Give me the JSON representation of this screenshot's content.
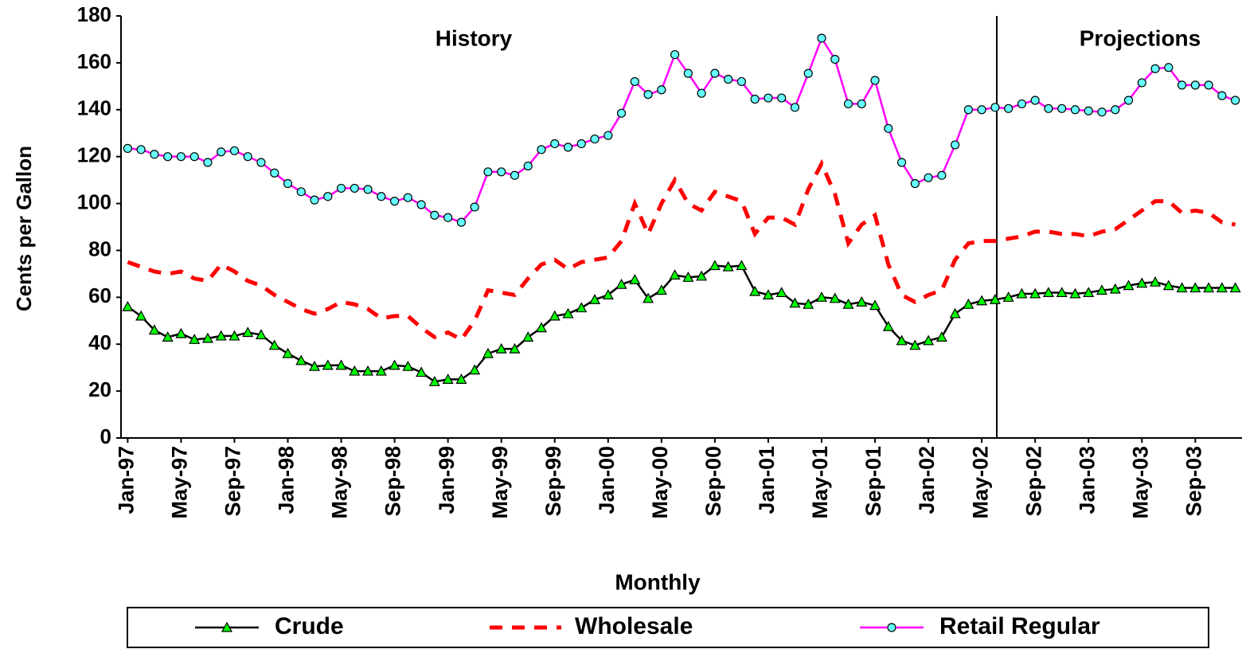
{
  "chart_data": {
    "type": "line",
    "y_label": "Cents per Gallon",
    "x_label": "Monthly",
    "annotations": [
      "History",
      "Projections"
    ],
    "categories": [
      "Jan-97",
      null,
      null,
      null,
      "May-97",
      null,
      null,
      null,
      "Sep-97",
      null,
      null,
      null,
      "Jan-98",
      null,
      null,
      null,
      "May-98",
      null,
      null,
      null,
      "Sep-98",
      null,
      null,
      null,
      "Jan-99",
      null,
      null,
      null,
      "May-99",
      null,
      null,
      null,
      "Sep-99",
      null,
      null,
      null,
      "Jan-00",
      null,
      null,
      null,
      "May-00",
      null,
      null,
      null,
      "Sep-00",
      null,
      null,
      null,
      "Jan-01",
      null,
      null,
      null,
      "May-01",
      null,
      null,
      null,
      "Sep-01",
      null,
      null,
      null,
      "Jan-02",
      null,
      null,
      null,
      "May-02",
      null,
      null,
      null,
      "Sep-02",
      null,
      null,
      null,
      "Jan-03",
      null,
      null,
      null,
      "May-03",
      null,
      null,
      null,
      "Sep-03",
      null,
      null,
      null
    ],
    "series": [
      {
        "name": "Crude",
        "color": "#000000",
        "marker_color": "#00ff00",
        "marker": "triangle",
        "dash": false,
        "values": [
          56,
          52,
          46,
          43,
          44.5,
          42,
          42.5,
          43.5,
          43.5,
          45,
          44,
          39.5,
          36,
          33,
          30.5,
          31,
          31,
          28.5,
          28.5,
          28.5,
          31,
          30.5,
          28,
          24,
          25,
          25,
          29,
          36,
          38,
          38,
          43,
          47,
          52,
          53,
          55.5,
          59,
          61,
          65.5,
          67.5,
          59.5,
          63,
          69.5,
          68.5,
          69,
          73.5,
          73,
          73.5,
          62.5,
          61,
          62,
          57.5,
          57,
          60,
          59.5,
          57,
          58,
          56.5,
          47.5,
          41.5,
          39.5,
          41.5,
          43,
          53,
          57,
          58.5,
          59,
          60,
          61.5,
          61.5,
          62,
          62,
          61.5,
          62,
          63,
          63.5,
          65,
          66,
          66.5,
          65,
          64,
          64,
          64,
          64,
          64
        ]
      },
      {
        "name": "Wholesale",
        "color": "#ff0000",
        "marker": "none",
        "dash": true,
        "values": [
          75,
          73,
          71,
          70,
          71,
          68,
          67,
          74,
          71,
          67,
          65,
          61,
          58,
          55,
          53,
          55,
          58,
          57,
          55,
          51,
          52,
          52,
          47,
          43,
          45,
          42,
          50,
          63,
          62,
          61,
          68,
          74,
          76,
          72,
          75,
          76,
          77,
          84,
          100,
          87,
          100,
          110,
          100,
          97,
          105,
          103,
          101,
          87,
          94,
          94,
          91,
          106,
          117,
          104,
          83,
          91,
          95,
          74,
          61,
          58,
          61,
          63,
          76,
          83,
          84,
          84,
          85,
          86,
          88,
          88,
          87,
          87,
          86,
          88,
          89,
          93,
          97,
          101,
          101,
          96,
          97,
          96,
          92,
          91
        ]
      },
      {
        "name": "Retail Regular",
        "color": "#ff00ff",
        "marker_color": "#66ffff",
        "marker": "circle",
        "dash": false,
        "values": [
          123.5,
          123,
          121,
          120,
          120,
          120,
          117.5,
          122,
          122.5,
          120,
          117.5,
          113,
          108.5,
          105,
          101.5,
          103,
          106.5,
          106.5,
          106,
          103,
          101,
          102.5,
          99.5,
          95,
          94,
          92,
          98.5,
          113.5,
          113.5,
          112,
          116,
          123,
          125.5,
          124,
          125.5,
          127.5,
          129,
          138.5,
          152,
          146.5,
          148.5,
          163.5,
          155.5,
          147,
          155.5,
          153,
          152,
          144.5,
          145,
          145,
          141,
          155.5,
          170.5,
          161.5,
          142.5,
          142.5,
          152.5,
          132,
          117.5,
          108.5,
          111,
          112,
          125,
          140,
          140,
          141,
          140.5,
          142.5,
          144,
          140.5,
          140.5,
          140,
          139.5,
          139,
          140,
          144,
          151.5,
          157.5,
          158,
          150.5,
          150.5,
          150.5,
          146,
          144
        ]
      }
    ],
    "ylim": [
      0,
      180
    ],
    "yticks": [
      0,
      20,
      40,
      60,
      80,
      100,
      120,
      140,
      160,
      180
    ]
  }
}
